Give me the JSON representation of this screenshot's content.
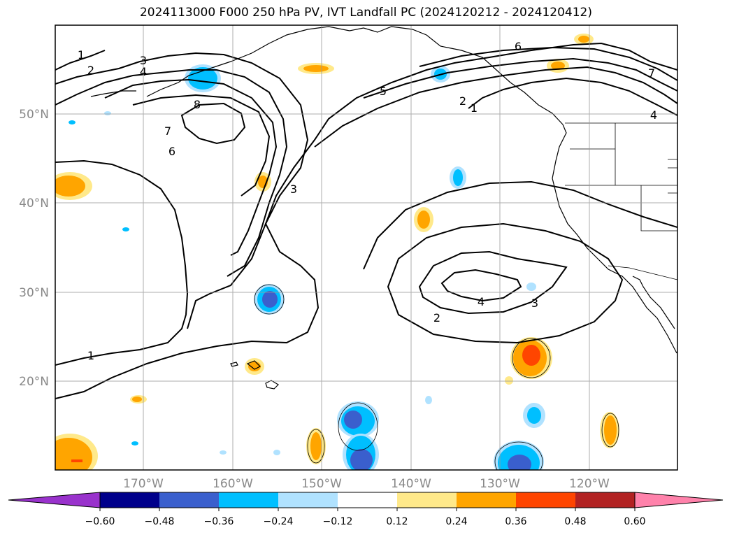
{
  "title": "2024113000 F000 250 hPa PV, IVT Landfall PC (2024120212 - 2024120412)",
  "map": {
    "lat_labels": [
      "50°N",
      "40°N",
      "30°N",
      "20°N"
    ],
    "lon_labels": [
      "170°W",
      "160°W",
      "150°W",
      "140°W",
      "130°W",
      "120°W"
    ],
    "contour_labels": [
      "1",
      "2",
      "3",
      "4",
      "8",
      "7",
      "6",
      "5",
      "6",
      "7",
      "2",
      "1",
      "4",
      "3",
      "1",
      "2",
      "4",
      "3"
    ],
    "grid": true
  },
  "colorbar": {
    "tick_labels": [
      "−0.60",
      "−0.48",
      "−0.36",
      "−0.24",
      "−0.12",
      "0.12",
      "0.24",
      "0.36",
      "0.48",
      "0.60"
    ],
    "colors": [
      "#9932CC",
      "#00008B",
      "#3A5FCD",
      "#00BFFF",
      "#B0E2FF",
      "#FFFFFF",
      "#FFE98A",
      "#FFA500",
      "#FF4500",
      "#B22222",
      "#FF82AB"
    ]
  }
}
